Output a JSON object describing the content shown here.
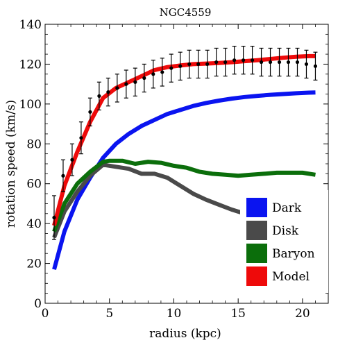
{
  "chart_data": {
    "type": "line",
    "title": "NGC4559",
    "xlabel": "radius (kpc)",
    "ylabel": "rotation speed (km/s)",
    "xlim": [
      0,
      22
    ],
    "ylim": [
      0,
      140
    ],
    "xticks": [
      0,
      5,
      10,
      15,
      20
    ],
    "yticks": [
      0,
      20,
      40,
      60,
      80,
      100,
      120,
      140
    ],
    "grid": false,
    "legend_position": "bottom-right",
    "series": [
      {
        "name": "Dark",
        "color": "#0a14f0",
        "x": [
          0.7,
          1.5,
          2.5,
          3.5,
          4.5,
          5.5,
          6.5,
          7.5,
          8.5,
          9.5,
          10.5,
          11.5,
          12.5,
          13.5,
          14.5,
          15.5,
          16.5,
          17.5,
          18.5,
          19.5,
          20.5,
          21.0
        ],
        "y": [
          17,
          36,
          52,
          63,
          73,
          80,
          85,
          89,
          92,
          95,
          97,
          99,
          100.5,
          101.7,
          102.7,
          103.5,
          104.1,
          104.6,
          105.0,
          105.4,
          105.7,
          105.8
        ]
      },
      {
        "name": "Baryon",
        "color": "#0b6e0b",
        "x": [
          0.7,
          1.5,
          2.5,
          3.5,
          4.5,
          5,
          6,
          7,
          8,
          9,
          10,
          11,
          12,
          13,
          14,
          15,
          16,
          17,
          18,
          19,
          20,
          21
        ],
        "y": [
          36,
          50,
          60,
          66,
          71,
          71.5,
          71.5,
          70,
          71,
          70.5,
          69,
          68,
          66,
          65,
          64.5,
          64,
          64.5,
          65,
          65.5,
          65.5,
          65.5,
          64.5
        ]
      },
      {
        "name": "Disk",
        "color": "#4a4a4a",
        "x": [
          0.7,
          1.5,
          2.5,
          3.5,
          4.5,
          5.5,
          6.5,
          7.5,
          8.5,
          9.5,
          10.5,
          11.5,
          12.5,
          13.5,
          14.5,
          15.5,
          16.5,
          17.5,
          18.5,
          19.5,
          20.5,
          21
        ],
        "y": [
          33,
          46,
          56,
          64,
          69.5,
          68.5,
          67.5,
          65,
          65,
          63,
          59,
          55,
          52,
          49.5,
          47,
          45,
          43.5,
          42.2,
          41,
          40,
          39.5,
          39
        ]
      },
      {
        "name": "Model",
        "color": "#ee0a0a",
        "x": [
          0.7,
          1.5,
          2.5,
          3.5,
          4.5,
          5.5,
          6.5,
          7.5,
          8.5,
          9.5,
          10.5,
          11.5,
          12.5,
          13.5,
          14.5,
          15.5,
          16.5,
          17.5,
          18.5,
          19.5,
          20.5,
          21
        ],
        "y": [
          39,
          59,
          76,
          91,
          103,
          108,
          111,
          114,
          117,
          118.5,
          119.3,
          120,
          120.3,
          120.6,
          121,
          121.5,
          122,
          122.6,
          123.2,
          123.7,
          124,
          124
        ]
      },
      {
        "name": "",
        "kind": "observed",
        "color": "#000000",
        "x": [
          0.7,
          1.4,
          2.1,
          2.8,
          3.5,
          4.2,
          4.9,
          5.6,
          6.3,
          7.0,
          7.7,
          8.4,
          9.1,
          9.8,
          10.5,
          11.2,
          11.9,
          12.6,
          13.3,
          14.0,
          14.7,
          15.4,
          16.1,
          16.8,
          17.5,
          18.2,
          18.9,
          19.6,
          20.3,
          21.0
        ],
        "y": [
          43,
          64,
          72,
          83,
          96,
          104,
          106,
          108,
          110,
          111,
          113,
          115,
          116,
          118,
          119,
          120,
          120,
          120,
          121,
          121,
          122,
          122,
          122,
          121,
          121,
          121,
          121,
          121,
          120,
          119
        ],
        "error": [
          11,
          8,
          8,
          8,
          7,
          7,
          7,
          7,
          7,
          7,
          7,
          7,
          7,
          7,
          7,
          7,
          7,
          7,
          7,
          7,
          7,
          7,
          7,
          7,
          7,
          7,
          7,
          7,
          7,
          7
        ]
      }
    ]
  }
}
